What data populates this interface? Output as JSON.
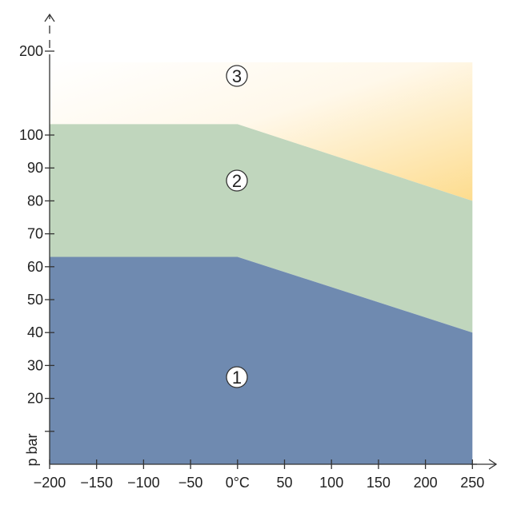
{
  "chart_data": {
    "type": "area",
    "xlabel": "",
    "ylabel": "p bar",
    "x_ticks": [
      {
        "value": -200,
        "label": "−200"
      },
      {
        "value": -150,
        "label": "−150"
      },
      {
        "value": -100,
        "label": "−100"
      },
      {
        "value": -50,
        "label": "−50"
      },
      {
        "value": 0,
        "label": "0°C"
      },
      {
        "value": 50,
        "label": "50"
      },
      {
        "value": 100,
        "label": "100"
      },
      {
        "value": 150,
        "label": "150"
      },
      {
        "value": 200,
        "label": "200"
      },
      {
        "value": 250,
        "label": "250"
      }
    ],
    "y_ticks": [
      {
        "value": 10,
        "label": ""
      },
      {
        "value": 20,
        "label": "20"
      },
      {
        "value": 30,
        "label": "30"
      },
      {
        "value": 40,
        "label": "40"
      },
      {
        "value": 50,
        "label": "50"
      },
      {
        "value": 60,
        "label": "60"
      },
      {
        "value": 70,
        "label": "70"
      },
      {
        "value": 80,
        "label": "80"
      },
      {
        "value": 90,
        "label": "90"
      },
      {
        "value": 100,
        "label": "100"
      },
      {
        "value": 200,
        "label": "200"
      }
    ],
    "xlim": [
      -200,
      250
    ],
    "grid": false,
    "regions": [
      {
        "label": "1",
        "color": "#6f8ab0",
        "lower": "axis",
        "upper": [
          {
            "x": -200,
            "y": 63
          },
          {
            "x": 0,
            "y": 63
          },
          {
            "x": 250,
            "y": 40
          }
        ]
      },
      {
        "label": "2",
        "color": "#c0d6bd",
        "lower": "region-1",
        "upper": [
          {
            "x": -200,
            "y": 113
          },
          {
            "x": 0,
            "y": 113
          },
          {
            "x": 250,
            "y": 80
          }
        ]
      },
      {
        "label": "3",
        "color": "#fde9b5",
        "lower": "region-2",
        "upper": "open"
      }
    ]
  }
}
